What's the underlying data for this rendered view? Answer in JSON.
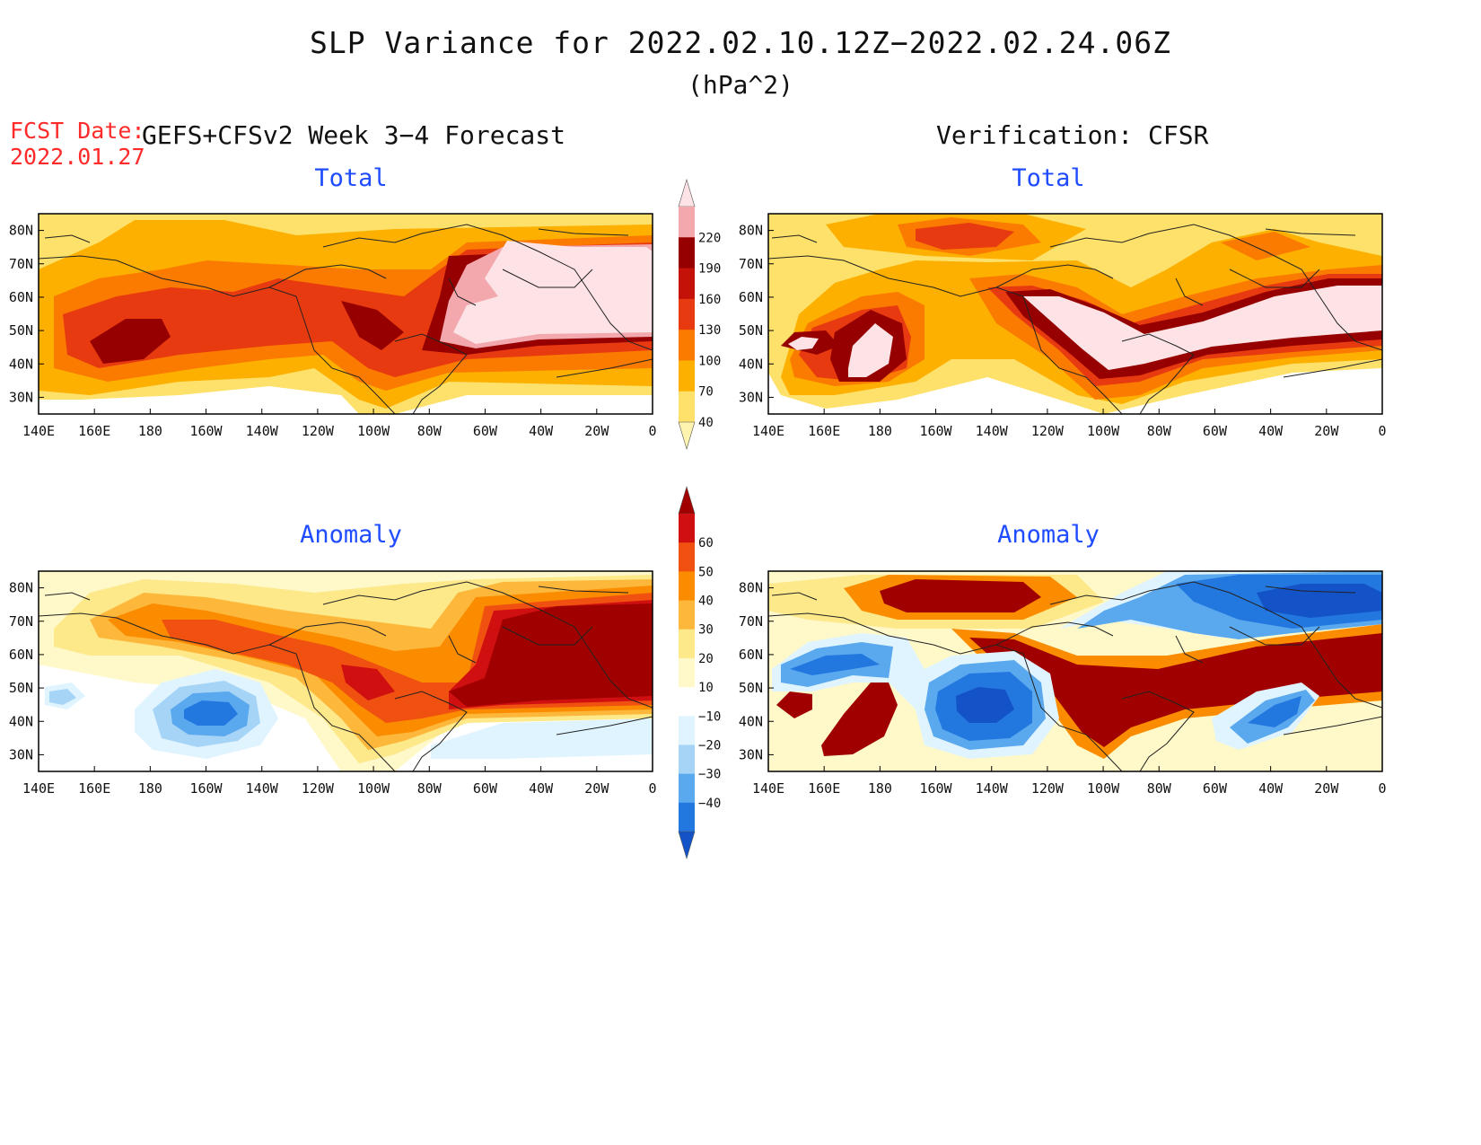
{
  "title": "SLP Variance for 2022.02.10.12Z−2022.02.24.06Z",
  "units": "(hPa^2)",
  "fcst_date_label": "FCST Date:",
  "fcst_date": "2022.01.27",
  "left_header": "GEFS+CFSv2 Week 3−4 Forecast",
  "right_header": "Verification: CFSR",
  "panels": {
    "forecast_total": "Total",
    "verification_total": "Total",
    "forecast_anomaly": "Anomaly",
    "verification_anomaly": "Anomaly"
  },
  "lat_labels": [
    "80N",
    "70N",
    "60N",
    "50N",
    "40N",
    "30N"
  ],
  "lon_labels": [
    "140E",
    "160E",
    "180",
    "160W",
    "140W",
    "120W",
    "100W",
    "80W",
    "60W",
    "40W",
    "20W",
    "0"
  ],
  "map_extent": {
    "lon_min": 140,
    "lon_max": 360,
    "lat_min": 25,
    "lat_max": 85
  },
  "total_colorbar": {
    "levels": [
      "40",
      "70",
      "100",
      "130",
      "160",
      "190",
      "220"
    ],
    "colors": [
      "#fff3b0",
      "#fde16a",
      "#fdb000",
      "#fb7a00",
      "#e83a10",
      "#c41208",
      "#960000",
      "#f3a8ae",
      "#fde3e6"
    ]
  },
  "anomaly_colorbar": {
    "levels": [
      "60",
      "50",
      "40",
      "30",
      "20",
      "10",
      "−10",
      "−20",
      "−30",
      "−40"
    ],
    "colors": [
      "#a00000",
      "#d01010",
      "#f05010",
      "#fb8c00",
      "#fdb83c",
      "#fde88a",
      "#fff8c8",
      "#ffffff",
      "#e0f4ff",
      "#a6d4f7",
      "#5aa8ee",
      "#2378e0",
      "#1452c8"
    ]
  }
}
